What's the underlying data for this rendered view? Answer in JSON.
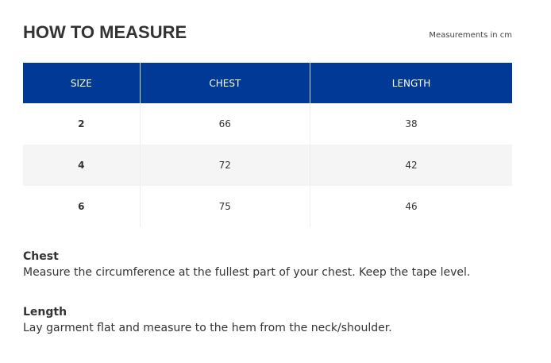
{
  "title": "HOW TO MEASURE",
  "unit_note": "Measurements in cm",
  "colors": {
    "header_bg": "#003a96"
  },
  "table": {
    "headers": [
      "SIZE",
      "CHEST",
      "LENGTH"
    ],
    "rows": [
      [
        "2",
        "66",
        "38"
      ],
      [
        "4",
        "72",
        "42"
      ],
      [
        "6",
        "75",
        "46"
      ]
    ]
  },
  "guides": [
    {
      "heading": "Chest",
      "text": "Measure the circumference at the fullest part of your chest. Keep the tape level."
    },
    {
      "heading": "Length",
      "text": "Lay garment flat and measure to the hem from the neck/shoulder."
    }
  ]
}
